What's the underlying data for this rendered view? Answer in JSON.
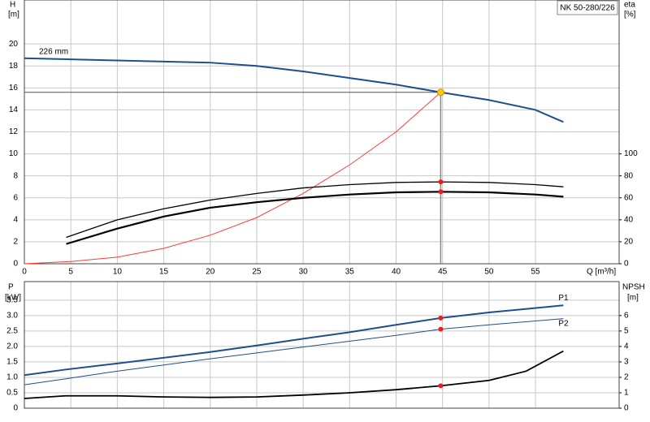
{
  "chart_data": [
    {
      "type": "line",
      "title": "NK 50-280/226",
      "ylabel": "H",
      "yunit": "[m]",
      "y2label": "eta",
      "y2unit": "[%]",
      "xlabel": "Q [m³/h]",
      "xlim": [
        0,
        64
      ],
      "xticks": [
        0,
        5,
        10,
        15,
        20,
        25,
        30,
        35,
        40,
        45,
        50,
        55
      ],
      "ylim": [
        0,
        24
      ],
      "yticks": [
        0,
        2,
        4,
        6,
        8,
        10,
        12,
        14,
        16,
        18,
        20
      ],
      "y2lim": [
        0,
        240
      ],
      "y2ticks": [
        0,
        20,
        40,
        60,
        80,
        100
      ],
      "grid": true,
      "duty_point": {
        "x": 44.8,
        "y": 15.6
      },
      "series": [
        {
          "name": "226 mm",
          "color": "#1f4e8c",
          "width": 2,
          "x": [
            0,
            5,
            10,
            15,
            20,
            25,
            30,
            35,
            40,
            44.8,
            50,
            55,
            58
          ],
          "values": [
            18.7,
            18.6,
            18.5,
            18.4,
            18.3,
            18.0,
            17.5,
            16.9,
            16.3,
            15.6,
            14.9,
            14.0,
            12.9
          ]
        },
        {
          "color": "#ff3b3b",
          "width": 1,
          "x": [
            0,
            5,
            10,
            15,
            20,
            25,
            30,
            35,
            40,
            44.8
          ],
          "values": [
            0,
            0.2,
            0.6,
            1.4,
            2.6,
            4.2,
            6.4,
            9.0,
            12.0,
            15.6
          ]
        },
        {
          "color": "#000000",
          "width": 1.3,
          "axis": "y2",
          "x": [
            4.5,
            10,
            15,
            20,
            25,
            30,
            35,
            40,
            44.8,
            50,
            55,
            58
          ],
          "values": [
            24,
            40,
            50,
            58,
            64,
            69,
            72,
            74,
            74.5,
            74,
            72,
            70
          ]
        },
        {
          "color": "#000000",
          "width": 2.2,
          "axis": "y2",
          "x": [
            4.5,
            10,
            15,
            20,
            25,
            30,
            35,
            40,
            44.8,
            50,
            55,
            58
          ],
          "values": [
            18,
            32,
            43,
            51,
            56,
            60,
            63,
            65,
            65.5,
            65,
            63,
            61
          ]
        }
      ]
    },
    {
      "type": "line",
      "ylabel": "P",
      "yunit": "[kW]",
      "y2label": "NPSH",
      "y2unit": "[m]",
      "xlim": [
        0,
        64
      ],
      "ylim": [
        0,
        4.1
      ],
      "yticks": [
        0,
        0.5,
        {
          "value": 1,
          "label": "1.0"
        },
        1.5,
        {
          "value": 2,
          "label": "2.0"
        },
        2.5,
        {
          "value": 3,
          "label": "3.0"
        },
        3.5
      ],
      "y2lim": [
        0,
        8.2
      ],
      "y2ticks": [
        0,
        1,
        2,
        3,
        4,
        5,
        6
      ],
      "grid": true,
      "series": [
        {
          "name": "P1",
          "color": "#1f4e8c",
          "width": 2,
          "x": [
            0,
            4.4,
            10,
            20,
            25,
            30,
            35,
            40,
            44.8,
            50,
            58
          ],
          "values": [
            1.07,
            1.25,
            1.45,
            1.82,
            2.03,
            2.25,
            2.46,
            2.7,
            2.92,
            3.1,
            3.33
          ]
        },
        {
          "name": "P2",
          "color": "#1f4e8c",
          "width": 1,
          "x": [
            0,
            4.4,
            10,
            20,
            30,
            40,
            44.8,
            50,
            58
          ],
          "values": [
            0.76,
            0.95,
            1.2,
            1.6,
            1.98,
            2.36,
            2.56,
            2.7,
            2.9
          ]
        },
        {
          "color": "#000000",
          "width": 1.8,
          "axis": "y2",
          "x": [
            0,
            4.4,
            10,
            15,
            20,
            25,
            30,
            35,
            40,
            44.8,
            50,
            54,
            58
          ],
          "values": [
            0.63,
            0.8,
            0.8,
            0.73,
            0.7,
            0.73,
            0.85,
            1.0,
            1.2,
            1.45,
            1.8,
            2.4,
            3.7
          ]
        }
      ]
    }
  ]
}
